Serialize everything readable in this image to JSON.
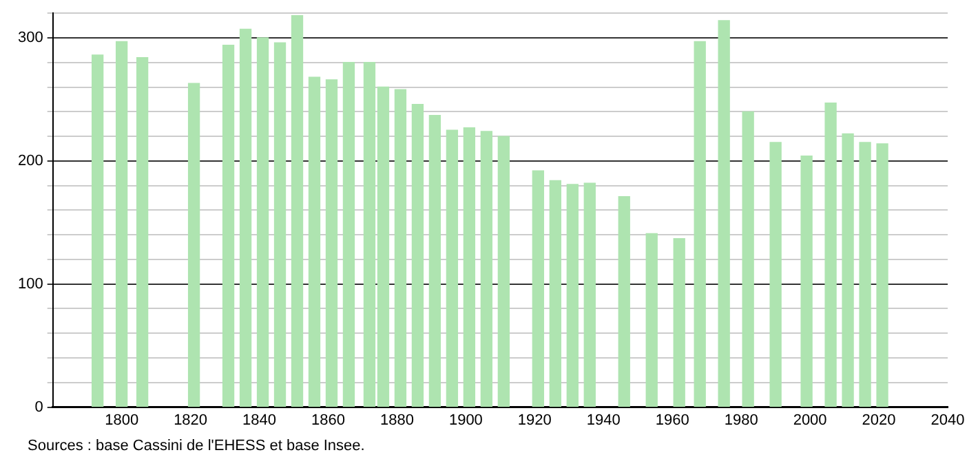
{
  "chart_data": {
    "type": "bar",
    "x": [
      1793,
      1800,
      1806,
      1821,
      1831,
      1836,
      1841,
      1846,
      1851,
      1856,
      1861,
      1866,
      1872,
      1876,
      1881,
      1886,
      1891,
      1896,
      1901,
      1906,
      1911,
      1921,
      1926,
      1931,
      1936,
      1946,
      1954,
      1962,
      1968,
      1975,
      1982,
      1990,
      1999,
      2006,
      2011,
      2016,
      2021
    ],
    "values": [
      286,
      297,
      284,
      263,
      294,
      307,
      300,
      296,
      318,
      268,
      266,
      280,
      280,
      260,
      258,
      246,
      237,
      225,
      227,
      224,
      220,
      192,
      184,
      181,
      182,
      171,
      141,
      137,
      297,
      314,
      240,
      215,
      204,
      247,
      222,
      215,
      214
    ],
    "color": "#aee4b0",
    "xlim": [
      1780,
      2040
    ],
    "xticks": [
      1800,
      1820,
      1840,
      1860,
      1880,
      1900,
      1920,
      1940,
      1960,
      1980,
      2000,
      2020,
      2040
    ],
    "ylim": [
      0,
      320
    ],
    "yticks": [
      0,
      {
        "value": 20,
        "label": null
      },
      {
        "value": 40,
        "label": null
      },
      {
        "value": 60,
        "label": null
      },
      {
        "value": 80,
        "label": null
      },
      100,
      {
        "value": 120,
        "label": null
      },
      {
        "value": 140,
        "label": null
      },
      {
        "value": 160,
        "label": null
      },
      {
        "value": 180,
        "label": null
      },
      200,
      {
        "value": 220,
        "label": null
      },
      {
        "value": 240,
        "label": null
      },
      {
        "value": 260,
        "label": null
      },
      {
        "value": 280,
        "label": null
      },
      300,
      {
        "value": 320,
        "label": null
      }
    ],
    "grid": "y",
    "annotations": [
      "Sources : base Cassini de l'EHESS et base Insee."
    ]
  }
}
